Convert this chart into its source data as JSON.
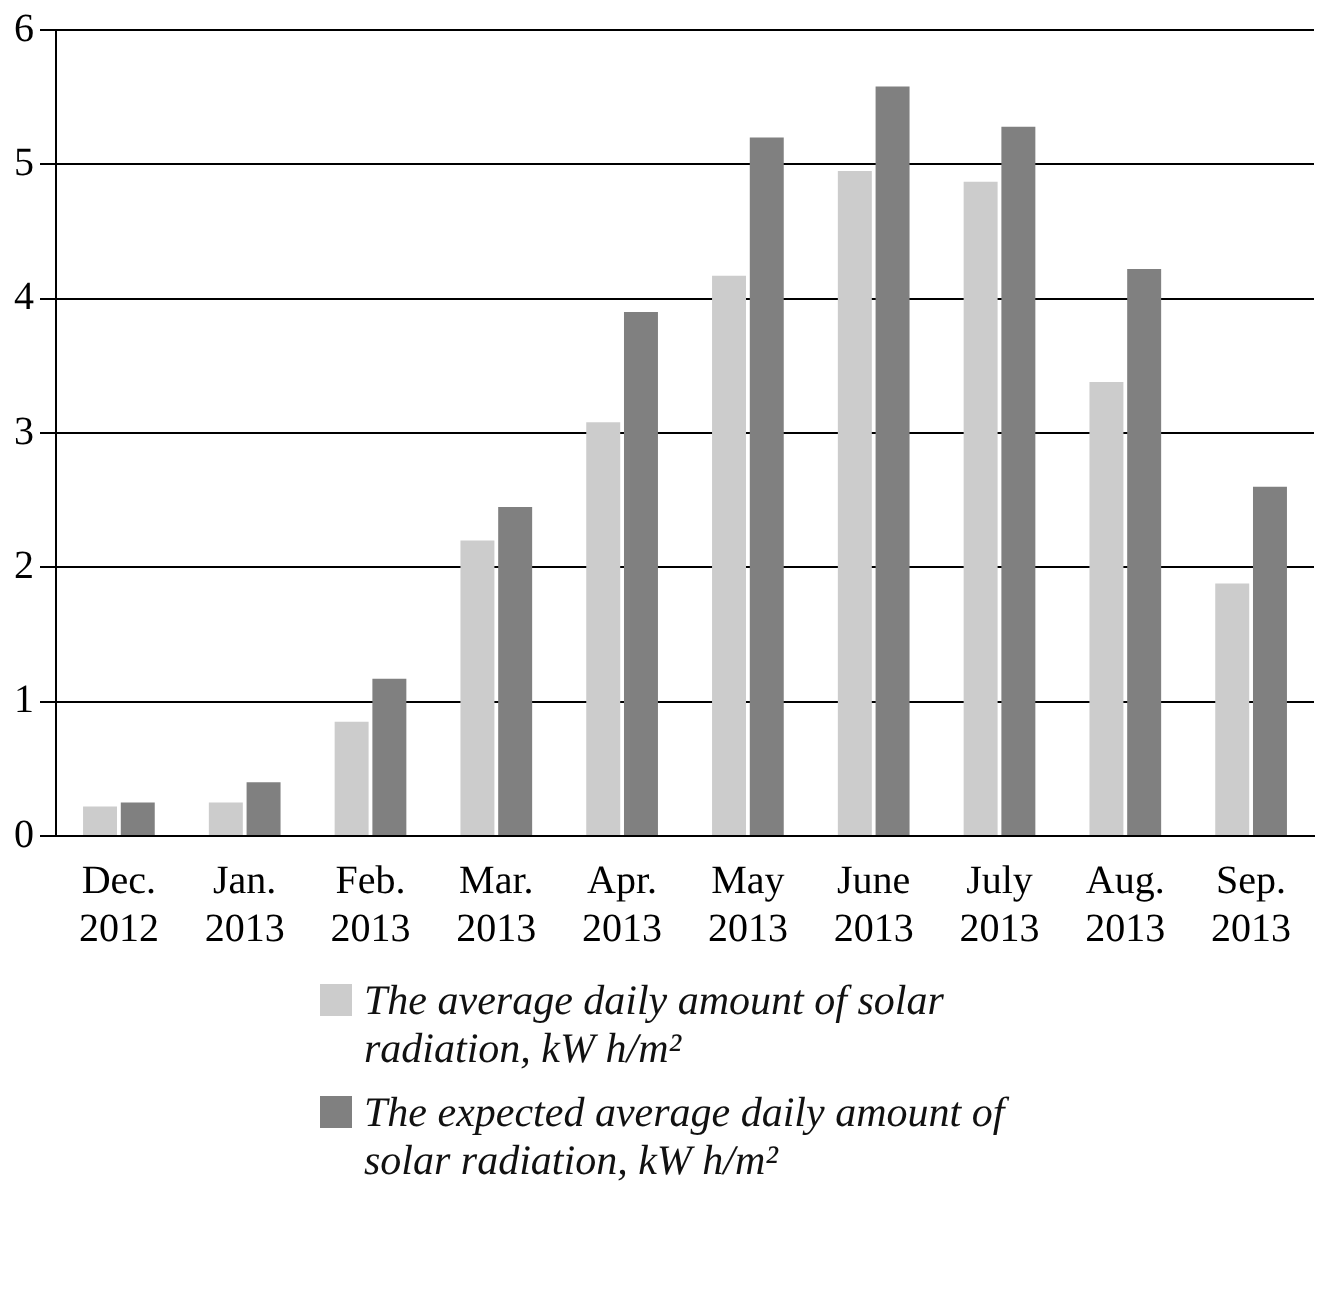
{
  "chart_data": {
    "type": "bar",
    "categories": [
      "Dec. 2012",
      "Jan. 2013",
      "Feb. 2013",
      "Mar. 2013",
      "Apr. 2013",
      "May 2013",
      "June 2013",
      "July 2013",
      "Aug. 2013",
      "Sep. 2013"
    ],
    "series": [
      {
        "name": "The average daily amount of solar radiation, kW h/m²",
        "color": "#cccccc",
        "values": [
          0.22,
          0.25,
          0.85,
          2.2,
          3.08,
          4.17,
          4.95,
          4.87,
          3.38,
          1.88
        ]
      },
      {
        "name": "The expected average daily amount of solar radiation, kW h/m²",
        "color": "#808080",
        "values": [
          0.25,
          0.4,
          1.17,
          2.45,
          3.9,
          5.2,
          5.58,
          5.28,
          4.22,
          2.6
        ]
      }
    ],
    "ylim": [
      0,
      6
    ],
    "yticks": [
      0,
      1,
      2,
      3,
      4,
      5,
      6
    ],
    "grid": "y",
    "legend": "bottom"
  }
}
